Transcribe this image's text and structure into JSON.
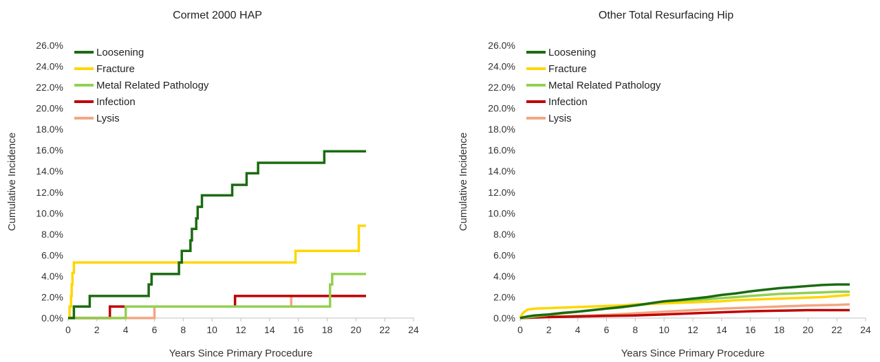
{
  "chart_data": [
    {
      "type": "line",
      "step": true,
      "title": "Cormet 2000 HAP",
      "xlabel": "Years Since Primary Procedure",
      "ylabel": "Cumulative Incidence",
      "xlim": [
        0,
        24
      ],
      "ylim": [
        0,
        26
      ],
      "x_ticks": [
        "0",
        "2",
        "4",
        "6",
        "8",
        "10",
        "12",
        "14",
        "16",
        "18",
        "20",
        "22",
        "24"
      ],
      "y_ticks": [
        "0.0%",
        "2.0%",
        "4.0%",
        "6.0%",
        "8.0%",
        "10.0%",
        "12.0%",
        "14.0%",
        "16.0%",
        "18.0%",
        "20.0%",
        "22.0%",
        "24.0%",
        "26.0%"
      ],
      "grid": false,
      "legend_position": "top-left",
      "series": [
        {
          "name": "Loosening",
          "color": "#1a6b10",
          "points": [
            [
              0,
              0
            ],
            [
              0.4,
              0
            ],
            [
              0.4,
              1.1
            ],
            [
              1.5,
              1.1
            ],
            [
              1.5,
              2.1
            ],
            [
              5.6,
              2.1
            ],
            [
              5.6,
              3.2
            ],
            [
              5.8,
              3.2
            ],
            [
              5.8,
              4.2
            ],
            [
              7.7,
              4.2
            ],
            [
              7.7,
              5.3
            ],
            [
              7.9,
              5.3
            ],
            [
              7.9,
              6.4
            ],
            [
              8.5,
              6.4
            ],
            [
              8.5,
              7.4
            ],
            [
              8.6,
              7.4
            ],
            [
              8.6,
              8.5
            ],
            [
              8.9,
              8.5
            ],
            [
              8.9,
              9.5
            ],
            [
              9.0,
              9.5
            ],
            [
              9.0,
              10.6
            ],
            [
              9.3,
              10.6
            ],
            [
              9.3,
              11.7
            ],
            [
              11.4,
              11.7
            ],
            [
              11.4,
              12.7
            ],
            [
              12.4,
              12.7
            ],
            [
              12.4,
              13.8
            ],
            [
              13.2,
              13.8
            ],
            [
              13.2,
              14.8
            ],
            [
              17.8,
              14.8
            ],
            [
              17.8,
              15.9
            ],
            [
              20.7,
              15.9
            ]
          ]
        },
        {
          "name": "Fracture",
          "color": "#ffd600",
          "points": [
            [
              0,
              0
            ],
            [
              0.1,
              0
            ],
            [
              0.1,
              1.1
            ],
            [
              0.2,
              1.1
            ],
            [
              0.2,
              2.1
            ],
            [
              0.25,
              2.1
            ],
            [
              0.25,
              3.2
            ],
            [
              0.3,
              3.2
            ],
            [
              0.3,
              4.3
            ],
            [
              0.4,
              4.3
            ],
            [
              0.4,
              5.3
            ],
            [
              15.8,
              5.3
            ],
            [
              15.8,
              6.4
            ],
            [
              20.2,
              6.4
            ],
            [
              20.2,
              8.8
            ],
            [
              20.7,
              8.8
            ]
          ]
        },
        {
          "name": "Metal Related Pathology",
          "color": "#92d050",
          "points": [
            [
              0,
              0
            ],
            [
              4.0,
              0
            ],
            [
              4.0,
              1.1
            ],
            [
              18.2,
              1.1
            ],
            [
              18.2,
              3.2
            ],
            [
              18.35,
              3.2
            ],
            [
              18.35,
              4.2
            ],
            [
              20.7,
              4.2
            ]
          ]
        },
        {
          "name": "Infection",
          "color": "#c00000",
          "points": [
            [
              0,
              0
            ],
            [
              2.9,
              0
            ],
            [
              2.9,
              1.1
            ],
            [
              11.6,
              1.1
            ],
            [
              11.6,
              2.1
            ],
            [
              20.7,
              2.1
            ]
          ]
        },
        {
          "name": "Lysis",
          "color": "#f4a582",
          "points": [
            [
              0,
              0
            ],
            [
              6.0,
              0
            ],
            [
              6.0,
              1.1
            ],
            [
              15.5,
              1.1
            ],
            [
              15.5,
              2.1
            ],
            [
              20.7,
              2.1
            ]
          ]
        }
      ]
    },
    {
      "type": "line",
      "step": false,
      "title": "Other Total Resurfacing Hip",
      "xlabel": "Years Since Primary Procedure",
      "ylabel": "Cumulative Incidence",
      "xlim": [
        0,
        24
      ],
      "ylim": [
        0,
        26
      ],
      "x_ticks": [
        "0",
        "2",
        "4",
        "6",
        "8",
        "10",
        "12",
        "14",
        "16",
        "18",
        "20",
        "22",
        "24"
      ],
      "y_ticks": [
        "0.0%",
        "2.0%",
        "4.0%",
        "6.0%",
        "8.0%",
        "10.0%",
        "12.0%",
        "14.0%",
        "16.0%",
        "18.0%",
        "20.0%",
        "22.0%",
        "24.0%",
        "26.0%"
      ],
      "grid": false,
      "legend_position": "top-left",
      "series": [
        {
          "name": "Loosening",
          "color": "#1a6b10",
          "points": [
            [
              0,
              0
            ],
            [
              0.5,
              0.15
            ],
            [
              1,
              0.25
            ],
            [
              2,
              0.35
            ],
            [
              3,
              0.5
            ],
            [
              4,
              0.6
            ],
            [
              5,
              0.75
            ],
            [
              6,
              0.9
            ],
            [
              7,
              1.05
            ],
            [
              8,
              1.2
            ],
            [
              9,
              1.4
            ],
            [
              10,
              1.6
            ],
            [
              11,
              1.7
            ],
            [
              12,
              1.85
            ],
            [
              13,
              2.0
            ],
            [
              14,
              2.2
            ],
            [
              15,
              2.35
            ],
            [
              16,
              2.55
            ],
            [
              17,
              2.7
            ],
            [
              18,
              2.85
            ],
            [
              19,
              2.95
            ],
            [
              20,
              3.05
            ],
            [
              21,
              3.15
            ],
            [
              22,
              3.2
            ],
            [
              22.9,
              3.2
            ]
          ]
        },
        {
          "name": "Fracture",
          "color": "#ffd600",
          "points": [
            [
              0,
              0
            ],
            [
              0.2,
              0.5
            ],
            [
              0.5,
              0.8
            ],
            [
              1,
              0.9
            ],
            [
              2,
              0.95
            ],
            [
              3,
              1.0
            ],
            [
              4,
              1.05
            ],
            [
              5,
              1.1
            ],
            [
              6,
              1.15
            ],
            [
              7,
              1.2
            ],
            [
              8,
              1.3
            ],
            [
              9,
              1.35
            ],
            [
              10,
              1.4
            ],
            [
              11,
              1.45
            ],
            [
              12,
              1.5
            ],
            [
              13,
              1.55
            ],
            [
              14,
              1.6
            ],
            [
              15,
              1.7
            ],
            [
              16,
              1.75
            ],
            [
              17,
              1.8
            ],
            [
              18,
              1.85
            ],
            [
              19,
              1.9
            ],
            [
              20,
              1.95
            ],
            [
              21,
              2.0
            ],
            [
              22,
              2.1
            ],
            [
              22.9,
              2.2
            ]
          ]
        },
        {
          "name": "Metal Related Pathology",
          "color": "#92d050",
          "points": [
            [
              0,
              0
            ],
            [
              1,
              0.15
            ],
            [
              2,
              0.3
            ],
            [
              3,
              0.45
            ],
            [
              4,
              0.6
            ],
            [
              5,
              0.75
            ],
            [
              6,
              0.9
            ],
            [
              7,
              1.0
            ],
            [
              8,
              1.2
            ],
            [
              9,
              1.35
            ],
            [
              10,
              1.5
            ],
            [
              11,
              1.6
            ],
            [
              12,
              1.7
            ],
            [
              13,
              1.8
            ],
            [
              14,
              1.9
            ],
            [
              15,
              2.0
            ],
            [
              16,
              2.1
            ],
            [
              17,
              2.2
            ],
            [
              18,
              2.3
            ],
            [
              19,
              2.35
            ],
            [
              20,
              2.4
            ],
            [
              21,
              2.45
            ],
            [
              22,
              2.5
            ],
            [
              22.9,
              2.5
            ]
          ]
        },
        {
          "name": "Infection",
          "color": "#c00000",
          "points": [
            [
              0,
              0
            ],
            [
              1,
              0.05
            ],
            [
              2,
              0.1
            ],
            [
              4,
              0.15
            ],
            [
              6,
              0.2
            ],
            [
              8,
              0.25
            ],
            [
              10,
              0.35
            ],
            [
              12,
              0.45
            ],
            [
              14,
              0.55
            ],
            [
              16,
              0.65
            ],
            [
              18,
              0.7
            ],
            [
              20,
              0.75
            ],
            [
              22,
              0.75
            ],
            [
              22.9,
              0.75
            ]
          ]
        },
        {
          "name": "Lysis",
          "color": "#f4a582",
          "points": [
            [
              0,
              0
            ],
            [
              1,
              0.05
            ],
            [
              2,
              0.1
            ],
            [
              4,
              0.2
            ],
            [
              6,
              0.3
            ],
            [
              8,
              0.45
            ],
            [
              10,
              0.6
            ],
            [
              12,
              0.75
            ],
            [
              14,
              0.9
            ],
            [
              16,
              1.0
            ],
            [
              18,
              1.1
            ],
            [
              20,
              1.2
            ],
            [
              22,
              1.25
            ],
            [
              22.9,
              1.3
            ]
          ]
        }
      ]
    }
  ]
}
